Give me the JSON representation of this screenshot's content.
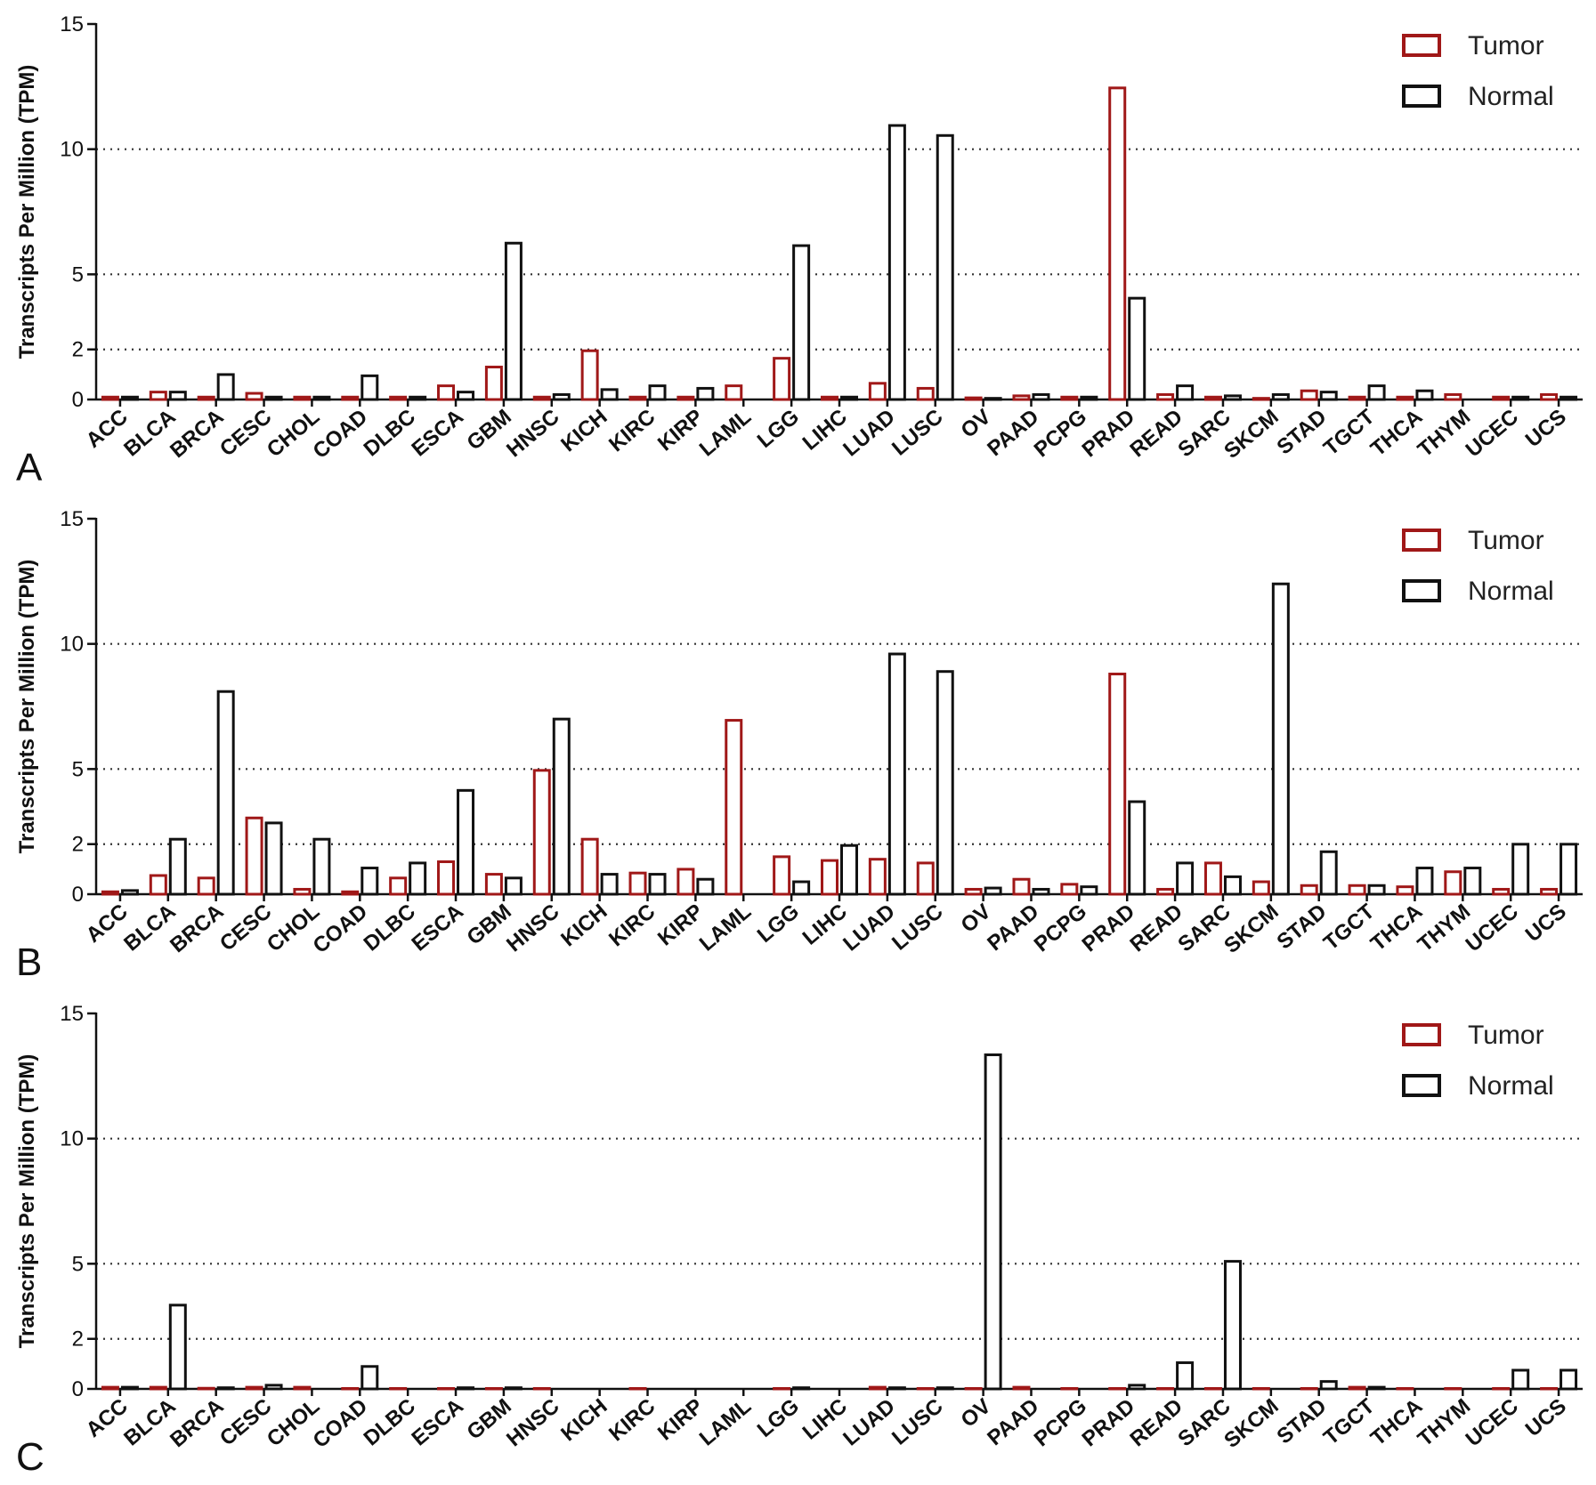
{
  "figure": {
    "panels": [
      "A",
      "B",
      "C"
    ]
  },
  "chart_data": [
    {
      "type": "bar",
      "panel_label": "A",
      "ylabel": "Transcripts Per Million (TPM)",
      "yticks": [
        0,
        2,
        5,
        10,
        15
      ],
      "ylim": [
        0,
        15
      ],
      "grid": "dotted horizontal at 2, 5, 10",
      "legend_position": "top-right",
      "colors": {
        "Tumor": "#a01818",
        "Normal": "#111111"
      },
      "categories": [
        "ACC",
        "BLCA",
        "BRCA",
        "CESC",
        "CHOL",
        "COAD",
        "DLBC",
        "ESCA",
        "GBM",
        "HNSC",
        "KICH",
        "KIRC",
        "KIRP",
        "LAML",
        "LGG",
        "LIHC",
        "LUAD",
        "LUSC",
        "OV",
        "PAAD",
        "PCPG",
        "PRAD",
        "READ",
        "SARC",
        "SKCM",
        "STAD",
        "TGCT",
        "THCA",
        "THYM",
        "UCEC",
        "UCS"
      ],
      "series": [
        {
          "name": "Tumor",
          "values": [
            0.15,
            0.35,
            0.15,
            0.3,
            0.15,
            0.15,
            0.15,
            0.6,
            1.35,
            0.15,
            2.0,
            0.15,
            0.15,
            0.6,
            1.7,
            0.15,
            0.7,
            0.5,
            0.12,
            0.2,
            0.15,
            12.5,
            0.25,
            0.15,
            0.1,
            0.4,
            0.15,
            0.15,
            0.25,
            0.15,
            0.25
          ]
        },
        {
          "name": "Normal",
          "values": [
            0.15,
            0.35,
            1.05,
            0.15,
            0.15,
            1.0,
            0.15,
            0.35,
            6.3,
            0.25,
            0.45,
            0.6,
            0.5,
            null,
            6.2,
            0.15,
            11.0,
            10.6,
            0.1,
            0.25,
            0.15,
            4.1,
            0.6,
            0.2,
            0.25,
            0.35,
            0.6,
            0.4,
            null,
            0.15,
            0.15
          ]
        }
      ]
    },
    {
      "type": "bar",
      "panel_label": "B",
      "ylabel": "Transcripts Per Million (TPM)",
      "yticks": [
        0,
        2,
        5,
        10,
        15
      ],
      "ylim": [
        0,
        15
      ],
      "grid": "dotted horizontal at 2, 5, 10",
      "legend_position": "top-right",
      "colors": {
        "Tumor": "#a01818",
        "Normal": "#111111"
      },
      "categories": [
        "ACC",
        "BLCA",
        "BRCA",
        "CESC",
        "CHOL",
        "COAD",
        "DLBC",
        "ESCA",
        "GBM",
        "HNSC",
        "KICH",
        "KIRC",
        "KIRP",
        "LAML",
        "LGG",
        "LIHC",
        "LUAD",
        "LUSC",
        "OV",
        "PAAD",
        "PCPG",
        "PRAD",
        "READ",
        "SARC",
        "SKCM",
        "STAD",
        "TGCT",
        "THCA",
        "THYM",
        "UCEC",
        "UCS"
      ],
      "series": [
        {
          "name": "Tumor",
          "values": [
            0.15,
            0.8,
            0.7,
            3.1,
            0.25,
            0.15,
            0.7,
            1.35,
            0.85,
            5.0,
            2.25,
            0.9,
            1.05,
            7.0,
            1.55,
            1.4,
            1.45,
            1.3,
            0.25,
            0.65,
            0.45,
            8.85,
            0.25,
            1.3,
            0.55,
            0.4,
            0.4,
            0.35,
            0.95,
            0.25,
            0.25
          ]
        },
        {
          "name": "Normal",
          "values": [
            0.2,
            2.25,
            8.15,
            2.9,
            2.25,
            1.1,
            1.3,
            4.2,
            0.7,
            7.05,
            0.85,
            0.85,
            0.65,
            null,
            0.55,
            2.0,
            9.65,
            8.95,
            0.3,
            0.25,
            0.35,
            3.75,
            1.3,
            0.75,
            12.45,
            1.75,
            0.4,
            1.1,
            1.1,
            2.05,
            2.05
          ]
        }
      ]
    },
    {
      "type": "bar",
      "panel_label": "C",
      "ylabel": "Transcripts Per Million (TPM)",
      "yticks": [
        0,
        2,
        5,
        10,
        15
      ],
      "ylim": [
        0,
        15
      ],
      "grid": "dotted horizontal at 2, 5, 10",
      "legend_position": "top-right",
      "colors": {
        "Tumor": "#a01818",
        "Normal": "#111111"
      },
      "categories": [
        "ACC",
        "BLCA",
        "BRCA",
        "CESC",
        "CHOL",
        "COAD",
        "DLBC",
        "ESCA",
        "GBM",
        "HNSC",
        "KICH",
        "KIRC",
        "KIRP",
        "LAML",
        "LGG",
        "LIHC",
        "LUAD",
        "LUSC",
        "OV",
        "PAAD",
        "PCPG",
        "PRAD",
        "READ",
        "SARC",
        "SKCM",
        "STAD",
        "TGCT",
        "THCA",
        "THYM",
        "UCEC",
        "UCS"
      ],
      "series": [
        {
          "name": "Tumor",
          "values": [
            0.12,
            0.12,
            0.08,
            0.12,
            0.12,
            0.05,
            0.05,
            0.05,
            0.05,
            0.05,
            null,
            0.05,
            null,
            null,
            0.05,
            null,
            0.12,
            0.05,
            0.05,
            0.12,
            0.05,
            0.05,
            0.05,
            0.05,
            0.05,
            0.05,
            0.12,
            0.05,
            0.05,
            0.05,
            0.05
          ]
        },
        {
          "name": "Normal",
          "values": [
            0.12,
            3.4,
            0.1,
            0.2,
            null,
            0.95,
            null,
            0.1,
            0.1,
            null,
            null,
            null,
            null,
            null,
            0.1,
            null,
            0.1,
            0.1,
            13.4,
            null,
            null,
            0.2,
            1.1,
            5.15,
            null,
            0.35,
            0.12,
            null,
            null,
            0.8,
            0.8
          ]
        }
      ]
    }
  ]
}
